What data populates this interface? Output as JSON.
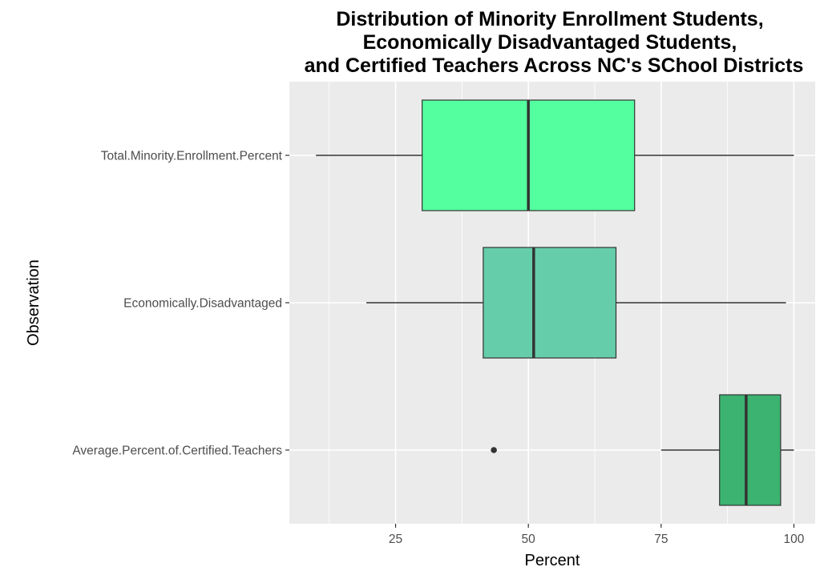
{
  "chart_data": {
    "type": "boxplot",
    "orientation": "horizontal",
    "title_lines": [
      "Distribution of Minority Enrollment Students,",
      "Economically Disadvantaged Students,",
      "and Certified Teachers Across NC's SChool Districts"
    ],
    "xlabel": "Percent",
    "ylabel": "Observation",
    "xlim": [
      5,
      104
    ],
    "x_ticks": [
      25,
      50,
      75,
      100
    ],
    "x_minor_ticks": [
      12.5,
      37.5,
      62.5,
      87.5
    ],
    "grid": true,
    "panel_background": "#ebebeb",
    "grid_color": "#ffffff",
    "categories": [
      "Total.Minority.Enrollment.Percent",
      "Economically.Disadvantaged",
      "Average.Percent.of.Certified.Teachers"
    ],
    "boxes": [
      {
        "category": "Total.Minority.Enrollment.Percent",
        "whisker_low": 10,
        "q1": 30,
        "median": 50,
        "q3": 70,
        "whisker_high": 100,
        "outliers": [],
        "fill": "#54ff9f"
      },
      {
        "category": "Economically.Disadvantaged",
        "whisker_low": 19.5,
        "q1": 41.5,
        "median": 51,
        "q3": 66.5,
        "whisker_high": 98.5,
        "outliers": [],
        "fill": "#66cdaa"
      },
      {
        "category": "Average.Percent.of.Certified.Teachers",
        "whisker_low": 75,
        "q1": 86,
        "median": 91,
        "q3": 97.5,
        "whisker_high": 100,
        "outliers": [
          43.5
        ],
        "fill": "#3cb371"
      }
    ],
    "outline_color": "#333333"
  }
}
